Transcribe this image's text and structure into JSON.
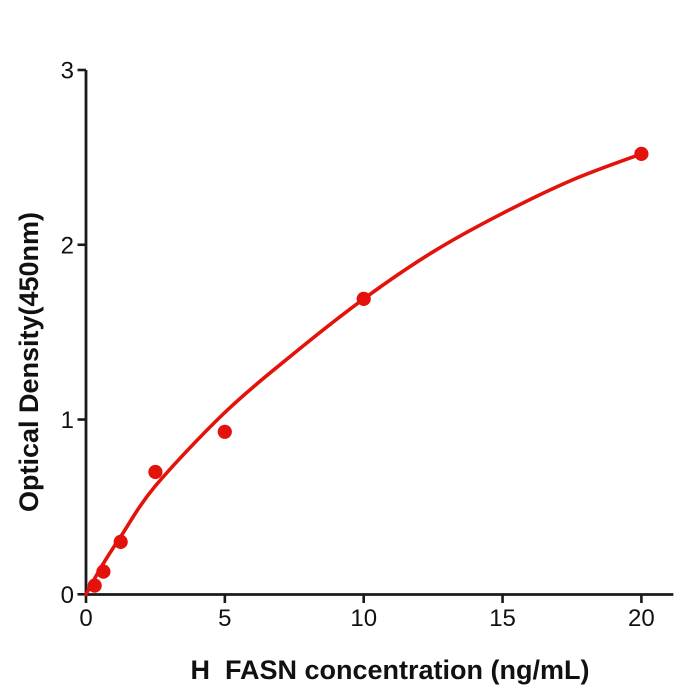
{
  "figure": {
    "background": "#ffffff"
  },
  "chart_data": {
    "type": "scatter",
    "title": "",
    "xlabel": "H  FASN concentration (ng/mL)",
    "ylabel": "Optical Density(450nm)",
    "x": [
      0.313,
      0.625,
      1.25,
      2.5,
      5,
      10,
      20
    ],
    "y": [
      0.05,
      0.13,
      0.3,
      0.7,
      0.93,
      1.69,
      2.52
    ],
    "series": [
      {
        "name": "standard-points",
        "style": "filled-circle-markers"
      },
      {
        "name": "fitted-curve",
        "style": "smooth-line"
      }
    ],
    "fit_curve": [
      [
        0,
        0
      ],
      [
        0.6,
        0.17
      ],
      [
        1.25,
        0.33
      ],
      [
        2.5,
        0.62
      ],
      [
        5,
        1.04
      ],
      [
        7.5,
        1.38
      ],
      [
        10,
        1.69
      ],
      [
        12.5,
        1.96
      ],
      [
        15,
        2.18
      ],
      [
        17.5,
        2.37
      ],
      [
        20,
        2.52
      ]
    ],
    "xticks": [
      0,
      5,
      10,
      15,
      20
    ],
    "yticks": [
      0,
      1,
      2,
      3
    ],
    "xlim": [
      0,
      21.15
    ],
    "ylim": [
      0,
      3
    ],
    "grid": false,
    "legend": null,
    "marker_color": "#e3120b",
    "line_color": "#e3120b",
    "axis_color": "#1a1a1a",
    "tick_label_color": "#111111"
  }
}
